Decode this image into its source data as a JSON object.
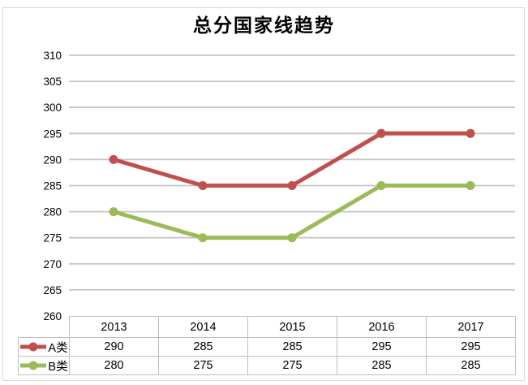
{
  "title": "总分国家线趋势",
  "colors": {
    "background": "#FFFFFF",
    "text": "#000000",
    "gridline": "#C6C6C6",
    "table_border": "#BFBFBF",
    "chart_border": "#D9D9D9",
    "series_a_red": "#C0504D",
    "series_b_green": "#9BBB59"
  },
  "chart_data": {
    "type": "line",
    "title": "总分国家线趋势",
    "categories": [
      "2013",
      "2014",
      "2015",
      "2016",
      "2017"
    ],
    "series": [
      {
        "name": "A类",
        "color": "#C0504D",
        "values": [
          290,
          285,
          285,
          295,
          295
        ]
      },
      {
        "name": "B类",
        "color": "#9BBB59",
        "values": [
          280,
          275,
          275,
          285,
          285
        ]
      }
    ],
    "ylim": [
      260,
      310
    ],
    "y_tick_step": 5,
    "y_tick_labels": [
      "260",
      "265",
      "270",
      "275",
      "280",
      "285",
      "290",
      "295",
      "300",
      "305",
      "310"
    ],
    "grid": true,
    "marker": "circle",
    "legend_position": "data-table-left",
    "data_table_shown": true
  }
}
